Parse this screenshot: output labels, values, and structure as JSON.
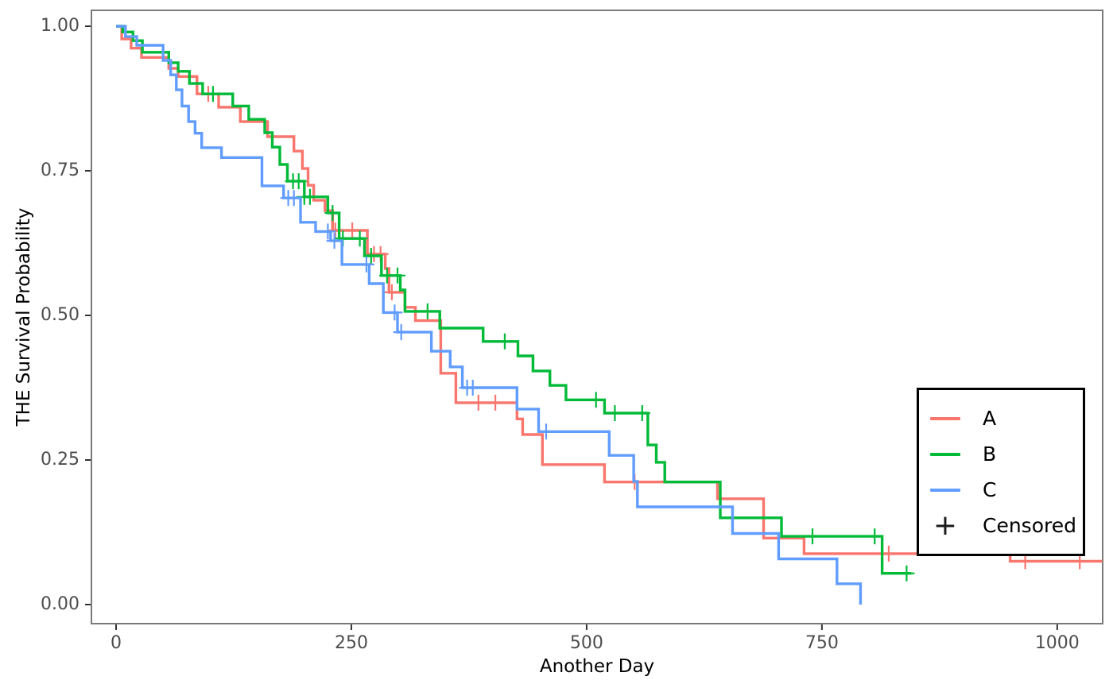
{
  "figure": {
    "background": "#ffffff",
    "panel_border_color": "#7a7a7a",
    "tick_color": "#333333",
    "tick_label_color": "#4d4d4d"
  },
  "x_axis": {
    "label": "Another Day",
    "ticks": [
      {
        "label": "0",
        "value": 0
      },
      {
        "label": "250",
        "value": 250
      },
      {
        "label": "500",
        "value": 500
      },
      {
        "label": "750",
        "value": 750
      },
      {
        "label": "1000",
        "value": 1000
      }
    ]
  },
  "y_axis": {
    "label": "THE Survival Probability",
    "ticks": [
      {
        "label": "1.00",
        "value": 1.0
      },
      {
        "label": "0.75",
        "value": 0.75
      },
      {
        "label": "0.50",
        "value": 0.5
      },
      {
        "label": "0.25",
        "value": 0.25
      },
      {
        "label": "0.00",
        "value": 0.0
      }
    ]
  },
  "legend": {
    "items": [
      {
        "label": "A",
        "color": "#F8766D"
      },
      {
        "label": "B",
        "color": "#00BA38"
      },
      {
        "label": "C",
        "color": "#619CFF"
      }
    ],
    "censored_label": "Censored",
    "censored_symbol": "+"
  },
  "chart_data": {
    "type": "line",
    "subtype": "kaplan-meier-step",
    "title": "",
    "xlabel": "Another Day",
    "ylabel": "THE Survival Probability",
    "xlim": [
      -26,
      1048
    ],
    "ylim": [
      -0.033,
      1.027
    ],
    "grid": false,
    "panel_border": true,
    "legend_position": "right-inside",
    "series": [
      {
        "name": "A",
        "color": "#F8766D",
        "steps": [
          [
            0,
            1.0
          ],
          [
            6,
            0.978
          ],
          [
            16,
            0.962
          ],
          [
            27,
            0.946
          ],
          [
            56,
            0.927
          ],
          [
            66,
            0.913
          ],
          [
            86,
            0.883
          ],
          [
            109,
            0.86
          ],
          [
            132,
            0.835
          ],
          [
            161,
            0.809
          ],
          [
            189,
            0.784
          ],
          [
            198,
            0.754
          ],
          [
            204,
            0.725
          ],
          [
            210,
            0.699
          ],
          [
            222,
            0.681
          ],
          [
            230,
            0.647
          ],
          [
            267,
            0.606
          ],
          [
            286,
            0.581
          ],
          [
            290,
            0.54
          ],
          [
            307,
            0.514
          ],
          [
            318,
            0.491
          ],
          [
            345,
            0.4
          ],
          [
            361,
            0.349
          ],
          [
            426,
            0.321
          ],
          [
            432,
            0.294
          ],
          [
            453,
            0.242
          ],
          [
            519,
            0.212
          ],
          [
            639,
            0.183
          ],
          [
            688,
            0.115
          ],
          [
            731,
            0.088
          ],
          [
            950,
            0.075
          ]
        ],
        "end": 1048,
        "censors": [
          98,
          233,
          251,
          274,
          281,
          293,
          385,
          403,
          551,
          821,
          966,
          1024
        ]
      },
      {
        "name": "B",
        "color": "#00BA38",
        "steps": [
          [
            0,
            1.0
          ],
          [
            7,
            0.99
          ],
          [
            18,
            0.975
          ],
          [
            28,
            0.955
          ],
          [
            56,
            0.937
          ],
          [
            66,
            0.922
          ],
          [
            78,
            0.901
          ],
          [
            92,
            0.883
          ],
          [
            124,
            0.862
          ],
          [
            141,
            0.839
          ],
          [
            158,
            0.816
          ],
          [
            166,
            0.791
          ],
          [
            174,
            0.761
          ],
          [
            182,
            0.732
          ],
          [
            200,
            0.705
          ],
          [
            225,
            0.677
          ],
          [
            237,
            0.633
          ],
          [
            264,
            0.603
          ],
          [
            282,
            0.569
          ],
          [
            302,
            0.544
          ],
          [
            307,
            0.507
          ],
          [
            344,
            0.478
          ],
          [
            390,
            0.455
          ],
          [
            427,
            0.43
          ],
          [
            443,
            0.404
          ],
          [
            461,
            0.379
          ],
          [
            478,
            0.354
          ],
          [
            519,
            0.331
          ],
          [
            565,
            0.276
          ],
          [
            574,
            0.246
          ],
          [
            583,
            0.212
          ],
          [
            642,
            0.15
          ],
          [
            707,
            0.118
          ],
          [
            814,
            0.054
          ]
        ],
        "end": 845,
        "censors": [
          103,
          188,
          194,
          200,
          206,
          230,
          241,
          259,
          271,
          288,
          299,
          331,
          413,
          510,
          530,
          559,
          740,
          806,
          840
        ]
      },
      {
        "name": "C",
        "color": "#619CFF",
        "steps": [
          [
            0,
            1.0
          ],
          [
            10,
            0.982
          ],
          [
            22,
            0.967
          ],
          [
            50,
            0.941
          ],
          [
            58,
            0.916
          ],
          [
            64,
            0.89
          ],
          [
            70,
            0.862
          ],
          [
            77,
            0.835
          ],
          [
            84,
            0.815
          ],
          [
            91,
            0.79
          ],
          [
            112,
            0.773
          ],
          [
            155,
            0.724
          ],
          [
            178,
            0.703
          ],
          [
            196,
            0.661
          ],
          [
            212,
            0.645
          ],
          [
            228,
            0.629
          ],
          [
            240,
            0.588
          ],
          [
            269,
            0.555
          ],
          [
            284,
            0.505
          ],
          [
            299,
            0.471
          ],
          [
            335,
            0.438
          ],
          [
            355,
            0.411
          ],
          [
            368,
            0.375
          ],
          [
            426,
            0.338
          ],
          [
            449,
            0.299
          ],
          [
            524,
            0.258
          ],
          [
            550,
            0.213
          ],
          [
            554,
            0.169
          ],
          [
            655,
            0.123
          ],
          [
            704,
            0.079
          ],
          [
            766,
            0.036
          ],
          [
            791,
            0.0
          ]
        ],
        "end": 791,
        "censors": [
          183,
          189,
          225,
          232,
          266,
          296,
          303,
          373,
          379,
          457
        ]
      }
    ]
  }
}
